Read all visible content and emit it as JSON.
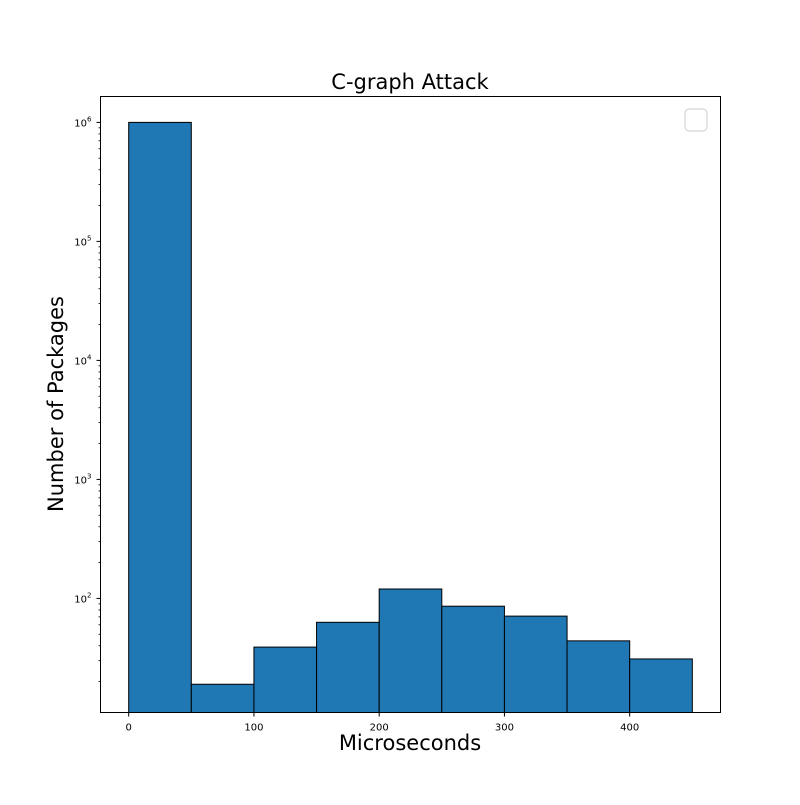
{
  "chart_data": {
    "type": "bar",
    "title": "C-graph Attack",
    "xlabel": "Microseconds",
    "ylabel": "Number of Packages",
    "y_scale": "log",
    "bin_edges": [
      0,
      50,
      100,
      150,
      200,
      250,
      300,
      350,
      400,
      450
    ],
    "values": [
      1000000,
      19,
      39,
      63,
      120,
      86,
      71,
      44,
      31
    ],
    "xlim": [
      -22.5,
      472.5
    ],
    "ylim": [
      11,
      1650000
    ],
    "x_ticks": [
      0,
      100,
      200,
      300,
      400
    ],
    "y_ticks": [
      {
        "value": 100,
        "base": "10",
        "exp": "2"
      },
      {
        "value": 1000,
        "base": "10",
        "exp": "3"
      },
      {
        "value": 10000,
        "base": "10",
        "exp": "4"
      },
      {
        "value": 100000,
        "base": "10",
        "exp": "5"
      },
      {
        "value": 1000000,
        "base": "10",
        "exp": "6"
      }
    ],
    "bar_color": "#1f77b4",
    "edge_color": "#000000",
    "legend": {
      "placement": "top-right",
      "entries": []
    },
    "grid": false
  }
}
